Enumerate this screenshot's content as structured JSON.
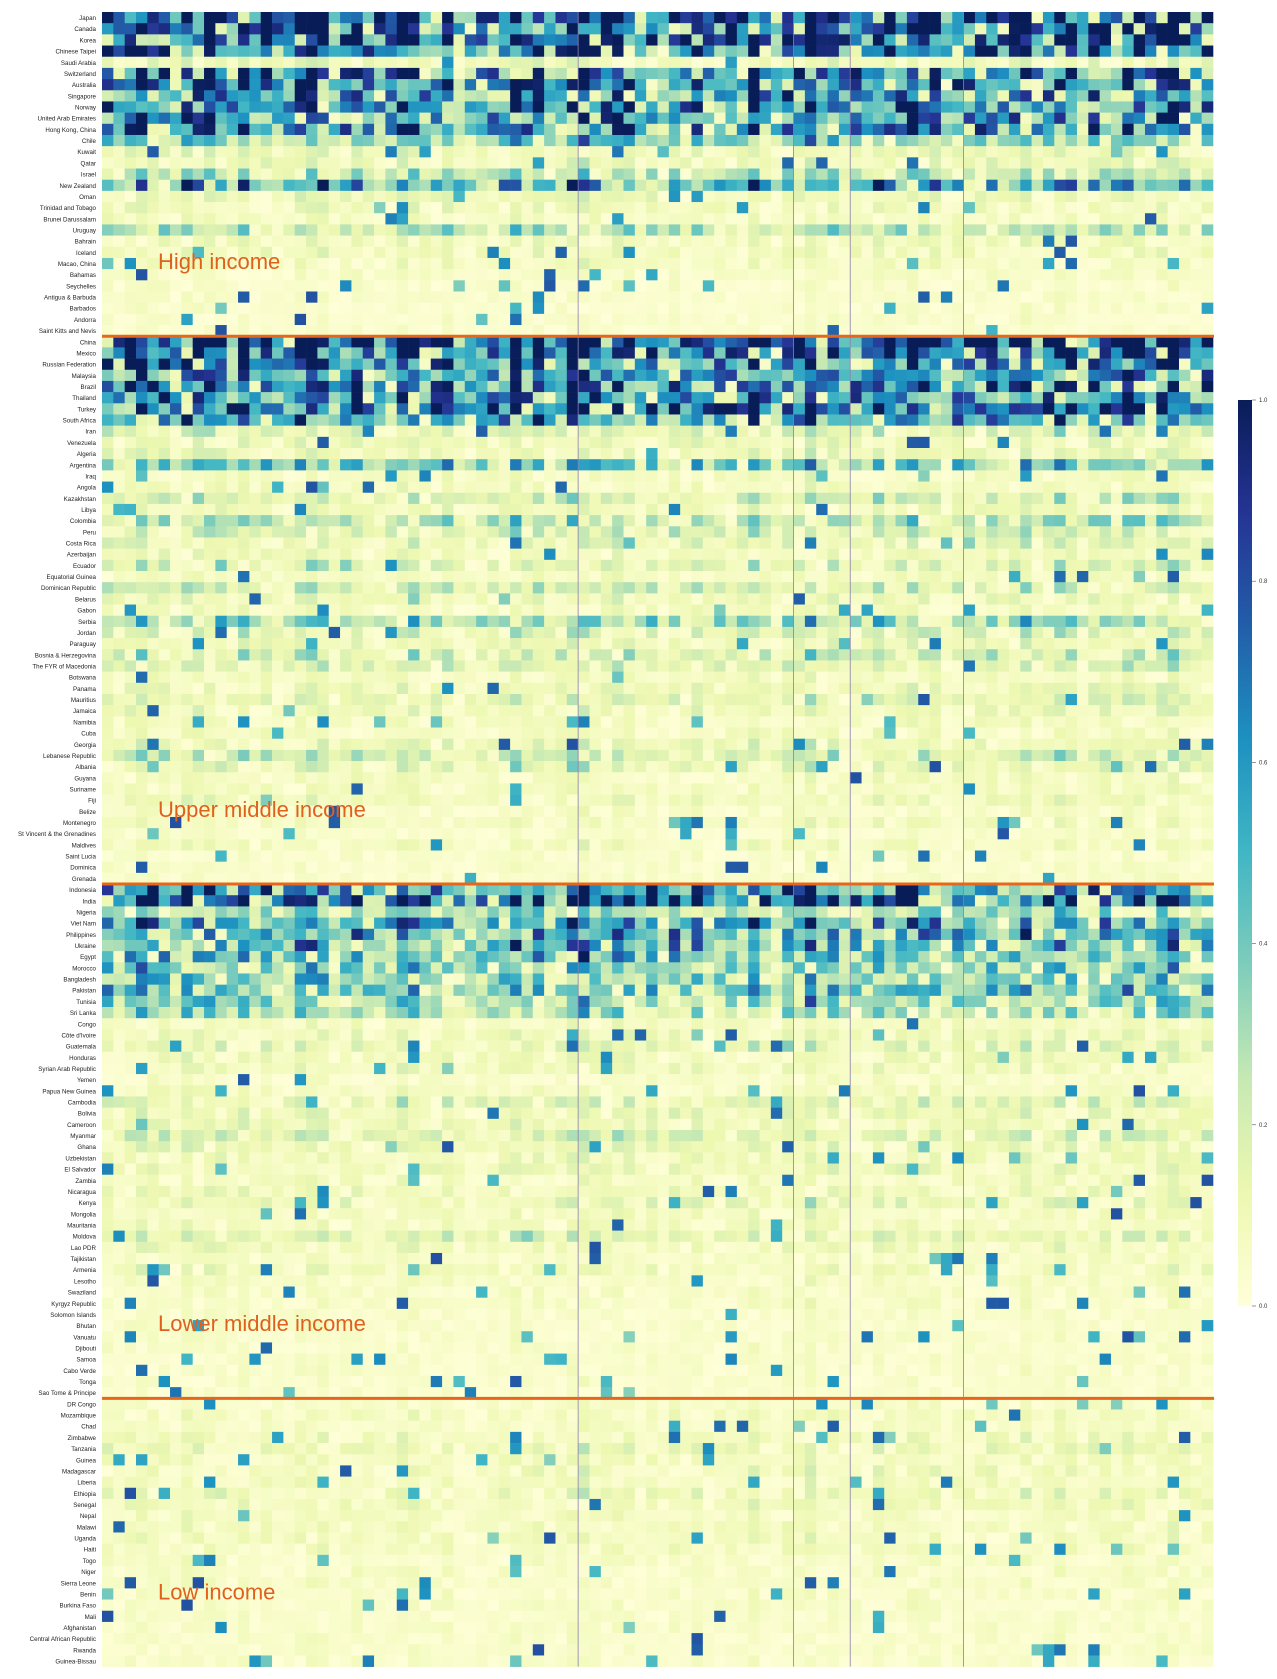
{
  "chart_data": {
    "type": "heatmap",
    "title": "",
    "xlabel": "",
    "ylabel": "",
    "column_count": 98,
    "colorscale": [
      "#ffffd9",
      "#edf8b1",
      "#c7e9b4",
      "#7fcdbb",
      "#41b6c4",
      "#1d91c0",
      "#225ea8",
      "#253494",
      "#081d58"
    ],
    "colorbar": {
      "min": 0.0,
      "max": 1.0,
      "ticks": [
        "0.0",
        "0.2",
        "0.4",
        "0.6",
        "0.8",
        "1.0"
      ]
    },
    "income_groups": [
      {
        "label": "High income",
        "countries": [
          "Japan",
          "Canada",
          "Korea",
          "Chinese Taipei",
          "Saudi Arabia",
          "Switzerland",
          "Australia",
          "Singapore",
          "Norway",
          "United Arab Emirates",
          "Hong Kong, China",
          "Chile",
          "Kuwait",
          "Qatar",
          "Israel",
          "New Zealand",
          "Oman",
          "Trinidad and Tobago",
          "Brunei Darussalam",
          "Uruguay",
          "Bahrain",
          "Iceland",
          "Macao, China",
          "Bahamas",
          "Seychelles",
          "Antigua & Barbuda",
          "Barbados",
          "Andorra",
          "Saint Kitts and Nevis"
        ],
        "row_intensity": [
          0.95,
          0.85,
          0.85,
          0.8,
          0.12,
          0.75,
          0.7,
          0.65,
          0.7,
          0.65,
          0.7,
          0.35,
          0.12,
          0.12,
          0.25,
          0.55,
          0.12,
          0.1,
          0.08,
          0.28,
          0.1,
          0.1,
          0.08,
          0.06,
          0.05,
          0.05,
          0.05,
          0.05,
          0.04
        ]
      },
      {
        "label": "Upper middle income",
        "countries": [
          "China",
          "Mexico",
          "Russian Federation",
          "Malaysia",
          "Brazil",
          "Thailand",
          "Turkey",
          "South Africa",
          "Iran",
          "Venezuela",
          "Algeria",
          "Argentina",
          "Iraq",
          "Angola",
          "Kazakhstan",
          "Libya",
          "Colombia",
          "Peru",
          "Costa Rica",
          "Azerbaijan",
          "Ecuador",
          "Equatorial Guinea",
          "Dominican Republic",
          "Belarus",
          "Gabon",
          "Serbia",
          "Jordan",
          "Paraguay",
          "Bosnia & Herzegovina",
          "The FYR of Macedonia",
          "Botswana",
          "Panama",
          "Mauritius",
          "Jamaica",
          "Namibia",
          "Cuba",
          "Georgia",
          "Lebanese Republic",
          "Albania",
          "Guyana",
          "Suriname",
          "Fiji",
          "Belize",
          "Montenegro",
          "St Vincent & the Grenadines",
          "Maldives",
          "Saint Lucia",
          "Dominica",
          "Grenada"
        ],
        "row_intensity": [
          0.95,
          0.8,
          0.7,
          0.65,
          0.7,
          0.7,
          0.85,
          0.6,
          0.18,
          0.12,
          0.12,
          0.4,
          0.08,
          0.08,
          0.22,
          0.1,
          0.3,
          0.2,
          0.15,
          0.1,
          0.18,
          0.08,
          0.2,
          0.12,
          0.08,
          0.35,
          0.18,
          0.12,
          0.22,
          0.18,
          0.08,
          0.12,
          0.15,
          0.12,
          0.08,
          0.08,
          0.12,
          0.22,
          0.15,
          0.08,
          0.08,
          0.1,
          0.06,
          0.08,
          0.05,
          0.08,
          0.05,
          0.05,
          0.05
        ]
      },
      {
        "label": "Lower middle income",
        "countries": [
          "Indonesia",
          "India",
          "Nigeria",
          "Viet Nam",
          "Philippines",
          "Ukraine",
          "Egypt",
          "Morocco",
          "Bangladesh",
          "Pakistan",
          "Tunisia",
          "Sri Lanka",
          "Congo",
          "Côte d'Ivoire",
          "Guatemala",
          "Honduras",
          "Syrian Arab Republic",
          "Yemen",
          "Papua New Guinea",
          "Cambodia",
          "Bolivia",
          "Cameroon",
          "Myanmar",
          "Ghana",
          "Uzbekistan",
          "El Salvador",
          "Zambia",
          "Nicaragua",
          "Kenya",
          "Mongolia",
          "Mauritania",
          "Moldova",
          "Lao PDR",
          "Tajikistan",
          "Armenia",
          "Lesotho",
          "Swaziland",
          "Kyrgyz Republic",
          "Solomon Islands",
          "Bhutan",
          "Vanuatu",
          "Djibouti",
          "Samoa",
          "Cabo Verde",
          "Tonga",
          "Sao Tome & Principe"
        ],
        "row_intensity": [
          0.7,
          0.9,
          0.3,
          0.55,
          0.55,
          0.5,
          0.45,
          0.4,
          0.4,
          0.45,
          0.35,
          0.3,
          0.08,
          0.1,
          0.15,
          0.1,
          0.1,
          0.06,
          0.08,
          0.18,
          0.12,
          0.12,
          0.18,
          0.12,
          0.1,
          0.12,
          0.08,
          0.1,
          0.15,
          0.08,
          0.08,
          0.15,
          0.1,
          0.06,
          0.1,
          0.06,
          0.06,
          0.06,
          0.05,
          0.05,
          0.05,
          0.05,
          0.05,
          0.05,
          0.05,
          0.04
        ]
      },
      {
        "label": "Low income",
        "countries": [
          "DR Congo",
          "Mozambique",
          "Chad",
          "Zimbabwe",
          "Tanzania",
          "Guinea",
          "Madagascar",
          "Liberia",
          "Ethiopia",
          "Senegal",
          "Nepal",
          "Malawi",
          "Uganda",
          "Haiti",
          "Togo",
          "Niger",
          "Sierra Leone",
          "Benin",
          "Burkina Faso",
          "Mali",
          "Afghanistan",
          "Central African Republic",
          "Rwanda",
          "Guinea-Bissau"
        ],
        "row_intensity": [
          0.06,
          0.08,
          0.06,
          0.1,
          0.12,
          0.08,
          0.1,
          0.08,
          0.12,
          0.1,
          0.08,
          0.08,
          0.08,
          0.08,
          0.06,
          0.06,
          0.06,
          0.06,
          0.06,
          0.05,
          0.05,
          0.05,
          0.05,
          0.05
        ]
      }
    ]
  }
}
